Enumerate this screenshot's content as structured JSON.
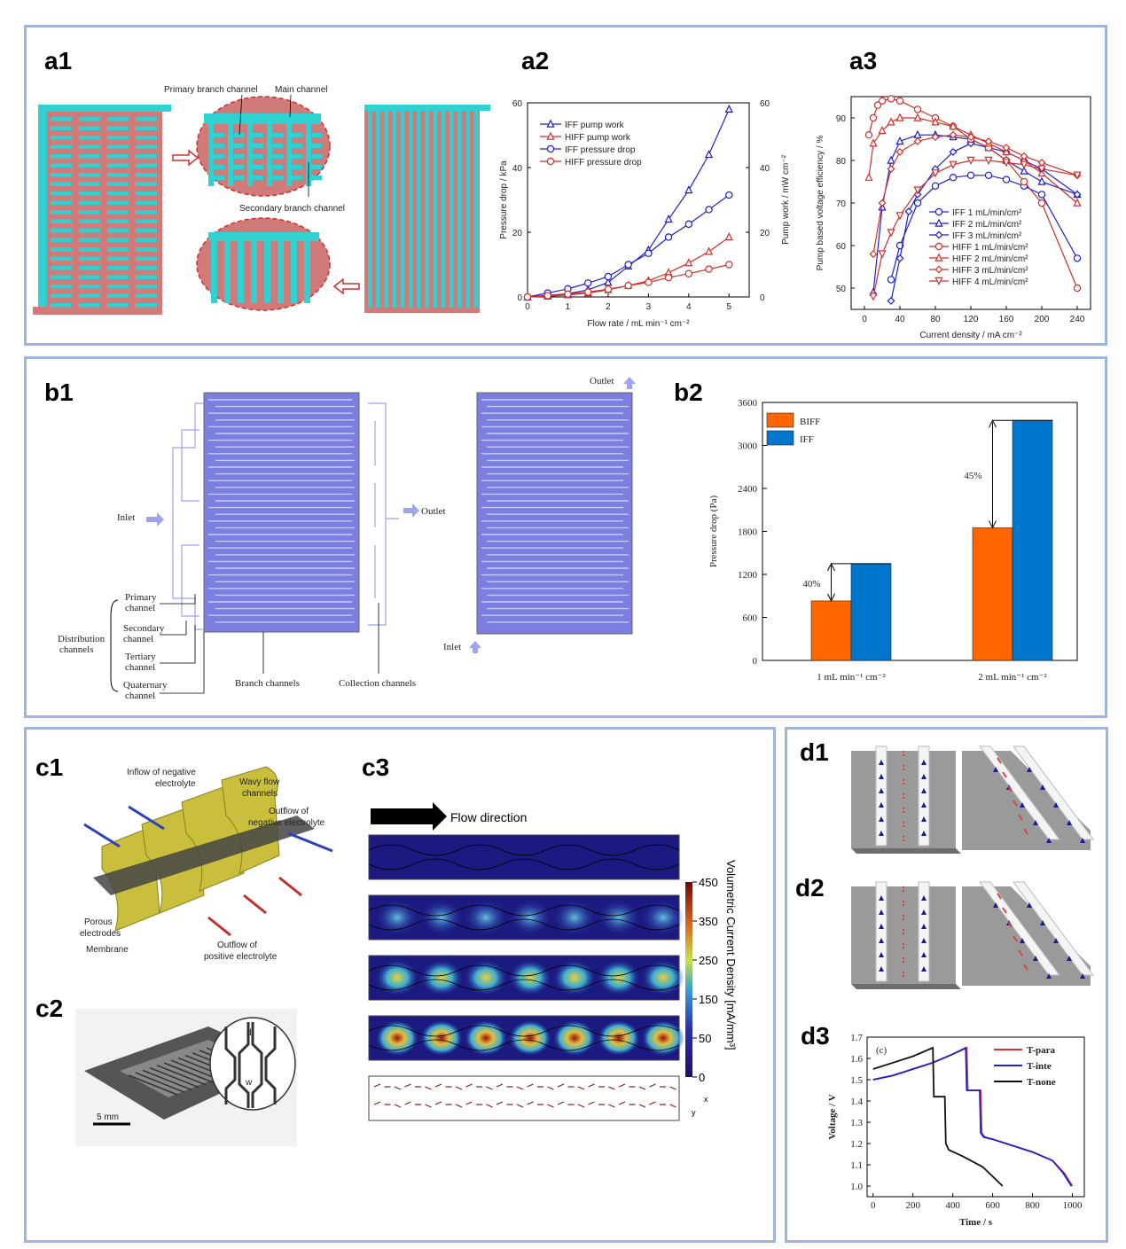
{
  "labels": {
    "a1": "a1",
    "a2": "a2",
    "a3": "a3",
    "b1": "b1",
    "b2": "b2",
    "c1": "c1",
    "c2": "c2",
    "c3": "c3",
    "d1": "d1",
    "d2": "d2",
    "d3": "d3"
  },
  "colors": {
    "blue": "#1f1fd0",
    "red": "#d0302a",
    "panel_border": "#9fb4de",
    "teal": "#2fd1d1",
    "rose": "#d07a7a",
    "flow": "#7a7fe0",
    "orange": "#ff6600",
    "bar_blue": "#0077cc"
  },
  "a1": {
    "primary": "Primary branch channel",
    "main": "Main channel",
    "secondary": "Secondary branch channel"
  },
  "b1": {
    "inlet": "Inlet",
    "outlet": "Outlet",
    "primary": [
      "Primary",
      "channel"
    ],
    "secondary": [
      "Secondary",
      "channel"
    ],
    "tertiary": [
      "Tertiary",
      "channel"
    ],
    "quaternary": [
      "Quaternary",
      "channel"
    ],
    "distribution": [
      "Distribution",
      "channels"
    ],
    "branch": "Branch channels",
    "collection": "Collection channels",
    "inlet2": "Inlet",
    "outlet2": "Outlet"
  },
  "c1": {
    "inflow": [
      "Inflow of negative",
      "electrolyte"
    ],
    "wavy": [
      "Wavy flow",
      "channels"
    ],
    "outflow_neg": [
      "Outflow of",
      "negative electrolyte"
    ],
    "porous": [
      "Porous",
      "electrodes"
    ],
    "membrane": "Membrane",
    "outflow_pos": [
      "Outflow of",
      "positive electrolyte"
    ]
  },
  "c2": {
    "scale": "5 mm",
    "d": "d",
    "l": "l",
    "w": "w"
  },
  "c3": {
    "flow": "Flow direction",
    "colorbar_title": "Volumetric Current Density [mA/mm³]",
    "ticks": [
      "450",
      "350",
      "250",
      "150",
      "50",
      "0"
    ],
    "axis_x": "x",
    "axis_y": "y"
  },
  "chart_data": [
    {
      "id": "a2",
      "type": "line",
      "xlabel": "Flow rate / mL min⁻¹ cm⁻²",
      "ylabel": "Pressure drop / kPa",
      "y2label": "Pump work / mW cm⁻²",
      "xlim": [
        0,
        5.5
      ],
      "ylim": [
        0,
        60
      ],
      "y2lim": [
        0,
        60
      ],
      "xticks": [
        "0",
        "1",
        "2",
        "3",
        "4",
        "5"
      ],
      "yticks": [
        "0",
        "20",
        "40",
        "60"
      ],
      "y2ticks": [
        "0",
        "20",
        "40",
        "60"
      ],
      "x": [
        0,
        0.5,
        1,
        1.5,
        2,
        2.5,
        3,
        3.5,
        4,
        4.5,
        5
      ],
      "series": [
        {
          "name": "IFF pump work",
          "color": "#1f1fd0",
          "marker": "triangle",
          "values": [
            0,
            0.5,
            1,
            2.2,
            4.5,
            9.5,
            14.5,
            24,
            33,
            44,
            58
          ]
        },
        {
          "name": "HIFF pump work",
          "color": "#d0302a",
          "marker": "triangle",
          "values": [
            0,
            0.2,
            0.6,
            1.2,
            2.2,
            3.5,
            5,
            7.5,
            10.5,
            14,
            18.5
          ]
        },
        {
          "name": "IFF pressure drop",
          "color": "#1f1fd0",
          "marker": "circle",
          "values": [
            0,
            1.2,
            2.5,
            4.3,
            6.3,
            10,
            13.5,
            18.5,
            22.5,
            27,
            31.5
          ]
        },
        {
          "name": "HIFF pressure drop",
          "color": "#d0302a",
          "marker": "circle",
          "values": [
            0,
            0.4,
            0.9,
            1.5,
            2.4,
            3.5,
            4.5,
            6,
            7.2,
            8.6,
            10
          ]
        }
      ]
    },
    {
      "id": "a3",
      "type": "line",
      "xlabel": "Current density / mA cm⁻²",
      "ylabel": "Pump based voltage efficiency / %",
      "xlim": [
        -15,
        255
      ],
      "ylim": [
        45,
        95
      ],
      "xticks": [
        "0",
        "40",
        "80",
        "120",
        "160",
        "200",
        "240"
      ],
      "yticks": [
        "50",
        "60",
        "70",
        "80",
        "90"
      ],
      "series": [
        {
          "name": "IFF 1 mL/min/cm²",
          "color": "#1f1fd0",
          "marker": "circle",
          "x": [
            30,
            40,
            60,
            80,
            100,
            120,
            140,
            160,
            180,
            200,
            240
          ],
          "y": [
            52,
            60,
            70,
            74,
            76,
            76.5,
            76.5,
            75.5,
            74,
            72,
            57
          ]
        },
        {
          "name": "IFF 2 mL/min/cm²",
          "color": "#1f1fd0",
          "marker": "triangle",
          "x": [
            10,
            20,
            30,
            40,
            60,
            80,
            100,
            120,
            140,
            160,
            180,
            200,
            240
          ],
          "y": [
            49,
            69,
            80,
            84.5,
            86,
            86,
            85.5,
            85,
            83,
            80,
            77.5,
            75,
            72
          ]
        },
        {
          "name": "IFF 3 mL/min/cm²",
          "color": "#1f1fd0",
          "marker": "diamond",
          "x": [
            30,
            40,
            50,
            60,
            80,
            100,
            120,
            140,
            160,
            180,
            200,
            240
          ],
          "y": [
            47,
            57,
            68,
            72,
            78,
            82,
            84,
            83,
            82,
            80,
            78,
            72
          ]
        },
        {
          "name": "HIFF 1 mL/min/cm²",
          "color": "#d0302a",
          "marker": "circle",
          "x": [
            5,
            10,
            15,
            20,
            30,
            40,
            60,
            80,
            100,
            120,
            140,
            160,
            180,
            200,
            240
          ],
          "y": [
            86,
            90,
            93,
            94,
            94.5,
            94,
            92,
            90,
            88,
            85,
            83,
            80,
            75,
            70,
            50
          ]
        },
        {
          "name": "HIFF 2 mL/min/cm²",
          "color": "#d0302a",
          "marker": "triangle",
          "x": [
            5,
            10,
            20,
            30,
            40,
            60,
            80,
            100,
            120,
            140,
            160,
            180,
            200,
            240
          ],
          "y": [
            76,
            84,
            87,
            89,
            90,
            90,
            89,
            88,
            86,
            84,
            82,
            80,
            77,
            70
          ]
        },
        {
          "name": "HIFF 3 mL/min/cm²",
          "color": "#d0302a",
          "marker": "diamond",
          "x": [
            10,
            20,
            30,
            40,
            60,
            80,
            100,
            120,
            140,
            160,
            180,
            200,
            240
          ],
          "y": [
            58,
            70,
            78,
            82,
            84.5,
            85.5,
            86,
            85.5,
            84.5,
            83,
            81,
            79.5,
            76.5
          ]
        },
        {
          "name": "HIFF 4 mL/min/cm²",
          "color": "#d0302a",
          "marker": "triangledown",
          "x": [
            10,
            20,
            30,
            40,
            60,
            80,
            100,
            120,
            140,
            160,
            180,
            200,
            240
          ],
          "y": [
            48,
            58,
            63,
            67,
            73,
            77,
            79,
            80,
            80,
            79.5,
            79,
            78,
            76.5
          ]
        }
      ]
    },
    {
      "id": "b2",
      "type": "bar",
      "ylabel": "Pressure drop (Pa)",
      "categories": [
        "1 mL min⁻¹ cm⁻²",
        "2 mL min⁻¹ cm⁻²"
      ],
      "ylim": [
        0,
        3600
      ],
      "yticks": [
        "0",
        "600",
        "1200",
        "1800",
        "2400",
        "3000",
        "3600"
      ],
      "series": [
        {
          "name": "BIFF",
          "color": "#ff6600",
          "values": [
            830,
            1850
          ]
        },
        {
          "name": "IFF",
          "color": "#0077cc",
          "values": [
            1350,
            3350
          ]
        }
      ],
      "annotations": [
        "40%",
        "45%"
      ]
    },
    {
      "id": "d3",
      "type": "line",
      "xlabel": "Time / s",
      "ylabel": "Voltage / V",
      "xlim": [
        -30,
        1060
      ],
      "ylim": [
        0.95,
        1.7
      ],
      "xticks": [
        "0",
        "200",
        "400",
        "600",
        "800",
        "1000"
      ],
      "yticks": [
        "1.0",
        "1.1",
        "1.2",
        "1.3",
        "1.4",
        "1.5",
        "1.6",
        "1.7"
      ],
      "panel_tag": "(c)",
      "series": [
        {
          "name": "T-para",
          "color": "#e03030",
          "x": [
            0,
            100,
            200,
            300,
            400,
            470,
            475,
            540,
            545,
            560,
            600,
            700,
            800,
            900,
            960,
            1000
          ],
          "y": [
            1.5,
            1.52,
            1.55,
            1.58,
            1.62,
            1.65,
            1.45,
            1.45,
            1.25,
            1.23,
            1.22,
            1.19,
            1.16,
            1.12,
            1.06,
            1.0
          ]
        },
        {
          "name": "T-inte",
          "color": "#2020d0",
          "x": [
            0,
            100,
            200,
            300,
            400,
            465,
            470,
            535,
            540,
            555,
            600,
            700,
            800,
            900,
            955,
            995
          ],
          "y": [
            1.5,
            1.52,
            1.55,
            1.58,
            1.62,
            1.65,
            1.45,
            1.45,
            1.25,
            1.23,
            1.22,
            1.19,
            1.16,
            1.12,
            1.06,
            1.0
          ]
        },
        {
          "name": "T-none",
          "color": "#111111",
          "x": [
            0,
            100,
            200,
            300,
            305,
            360,
            365,
            380,
            450,
            550,
            650
          ],
          "y": [
            1.55,
            1.58,
            1.61,
            1.65,
            1.42,
            1.42,
            1.2,
            1.17,
            1.14,
            1.09,
            1.0
          ]
        }
      ]
    }
  ]
}
